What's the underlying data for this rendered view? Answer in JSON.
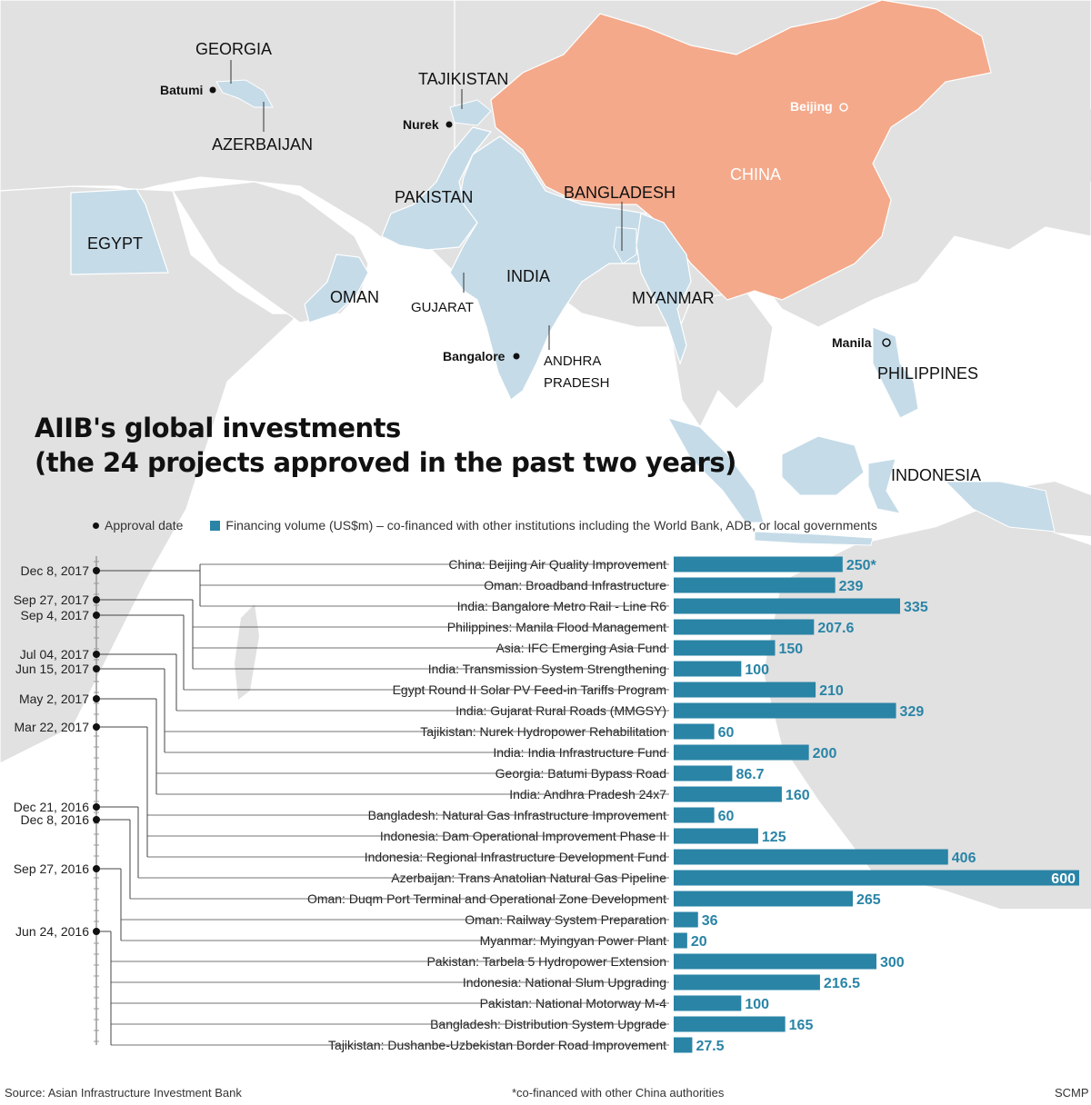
{
  "title": {
    "line1": "AIIB's global investments",
    "line2": "(the 24 projects approved in the past two years)"
  },
  "legend": {
    "approval": "Approval date",
    "financing": "Financing volume (US$m) – co-financed with other institutions including the World Bank, ADB, or local governments"
  },
  "map_labels": {
    "georgia": "GEORGIA",
    "batumi": "Batumi",
    "azerbaijan": "AZERBAIJAN",
    "tajikistan": "TAJIKISTAN",
    "nurek": "Nurek",
    "beijing": "Beijing",
    "china": "CHINA",
    "pakistan": "PAKISTAN",
    "bangladesh": "BANGLADESH",
    "egypt": "EGYPT",
    "india": "INDIA",
    "oman": "OMAN",
    "gujarat": "GUJARAT",
    "myanmar": "MYANMAR",
    "bangalore": "Bangalore",
    "andhra1": "ANDHRA",
    "andhra2": "PRADESH",
    "manila": "Manila",
    "philippines": "PHILIPPINES",
    "indonesia": "INDONESIA"
  },
  "colors": {
    "bar": "#2a84a6",
    "highlight_country": "#c5dbe8",
    "china": "#f4a98a",
    "land": "#e1e1e1",
    "sea": "#ffffff"
  },
  "chart_data": {
    "type": "bar",
    "orientation": "horizontal",
    "categories": [
      "China: Beijing Air Quality Improvement",
      "Oman: Broadband Infrastructure",
      "India: Bangalore Metro Rail - Line R6",
      "Philippines: Manila Flood Management",
      "Asia: IFC Emerging Asia Fund",
      "India: Transmission System Strengthening",
      "Egypt Round II Solar PV Feed-in Tariffs Program",
      "India: Gujarat Rural Roads (MMGSY)",
      "Tajikistan: Nurek Hydropower Rehabilitation",
      "India: India Infrastructure Fund",
      "Georgia: Batumi Bypass Road",
      "India: Andhra Pradesh 24x7",
      "Bangladesh: Natural Gas Infrastructure Improvement",
      "Indonesia: Dam Operational Improvement Phase II",
      "Indonesia: Regional Infrastructure Development Fund",
      "Azerbaijan: Trans Anatolian Natural Gas Pipeline",
      "Oman: Duqm Port Terminal and Operational Zone Development",
      "Oman: Railway System Preparation",
      "Myanmar: Myingyan Power Plant",
      "Pakistan: Tarbela 5 Hydropower Extension",
      "Indonesia: National Slum Upgrading",
      "Pakistan: National Motorway M-4",
      "Bangladesh: Distribution System Upgrade",
      "Tajikistan: Dushanbe-Uzbekistan Border Road Improvement"
    ],
    "values": [
      250,
      239,
      335,
      207.6,
      150,
      100,
      210,
      329,
      60,
      200,
      86.7,
      160,
      60,
      125,
      406,
      600,
      265,
      36,
      20,
      300,
      216.5,
      100,
      165,
      27.5
    ],
    "value_labels": [
      "250*",
      "239",
      "335",
      "207.6",
      "150",
      "100",
      "210",
      "329",
      "60",
      "200",
      "86.7",
      "160",
      "60",
      "125",
      "406",
      "600",
      "265",
      "36",
      "20",
      "300",
      "216.5",
      "100",
      "165",
      "27.5"
    ],
    "xlim": [
      0,
      600
    ],
    "approval_dates": [
      {
        "label": "Dec 8, 2017",
        "projects": [
          0,
          1,
          2
        ]
      },
      {
        "label": "Sep 27, 2017",
        "projects": [
          3,
          4,
          5
        ]
      },
      {
        "label": "Sep 4, 2017",
        "projects": [
          6
        ]
      },
      {
        "label": "Jul 04, 2017",
        "projects": [
          7
        ]
      },
      {
        "label": "Jun 15, 2017",
        "projects": [
          8,
          9
        ]
      },
      {
        "label": "May 2, 2017",
        "projects": [
          10,
          11
        ]
      },
      {
        "label": "Mar 22, 2017",
        "projects": [
          12,
          13,
          14
        ]
      },
      {
        "label": "Dec 21, 2016",
        "projects": [
          15
        ]
      },
      {
        "label": "Dec 8, 2016",
        "projects": [
          16
        ]
      },
      {
        "label": "Sep 27, 2016",
        "projects": [
          17,
          18
        ]
      },
      {
        "label": "Jun 24, 2016",
        "projects": [
          19,
          20,
          21,
          22,
          23
        ]
      }
    ],
    "legend_position": "top-left"
  },
  "footer": {
    "source": "Source: Asian Infrastructure Investment Bank",
    "note": "*co-financed with other China authorities",
    "credit": "SCMP"
  }
}
